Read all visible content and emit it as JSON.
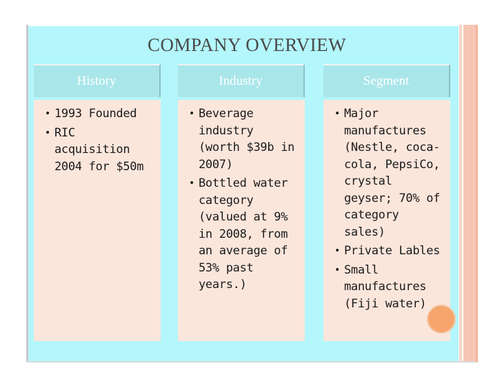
{
  "title": "COMPANY OVERVIEW",
  "columns": [
    {
      "header": "History",
      "items": [
        "1993 Founded",
        "RIC acquisition 2004 for $50m"
      ]
    },
    {
      "header": "Industry",
      "items": [
        "Beverage industry (worth $39b in 2007)",
        "Bottled water category (valued at 9% in 2008, from an average of 53% past years.)"
      ]
    },
    {
      "header": "Segment",
      "items": [
        "Major manufactures (Nestle, coca-cola, PepsiCo, crystal geyser; 70% of category sales)",
        "Private Lables",
        "Small manufactures (Fiji water)"
      ]
    }
  ],
  "colors": {
    "background": "#b3f6fb",
    "header_fill": "#a9e6ea",
    "body_fill": "#fbe6dc",
    "title_text": "#4a4a4a",
    "accent_orb": "#f6a56d",
    "stripe": "#f6c6b3"
  }
}
